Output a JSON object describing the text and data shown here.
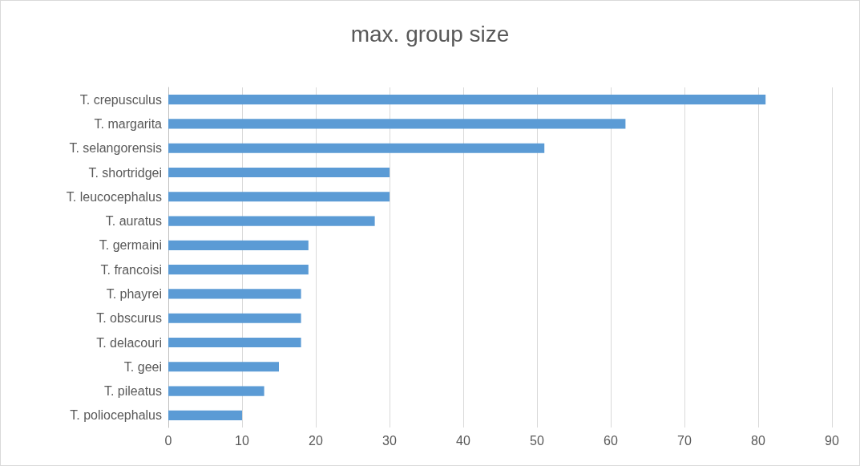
{
  "chart_data": {
    "type": "bar",
    "orientation": "horizontal",
    "title": "max. group size",
    "categories": [
      "T. crepusculus",
      "T. margarita",
      "T. selangorensis",
      "T. shortridgei",
      "T. leucocephalus",
      "T. auratus",
      "T. germaini",
      "T. francoisi",
      "T. phayrei",
      "T. obscurus",
      "T. delacouri",
      "T. geei",
      "T. pileatus",
      "T. poliocephalus"
    ],
    "values": [
      81,
      62,
      51,
      30,
      30,
      28,
      19,
      19,
      18,
      18,
      18,
      15,
      13,
      10
    ],
    "color": "#5b9bd5",
    "xlim": [
      0,
      90
    ],
    "xticks": [
      0,
      10,
      20,
      30,
      40,
      50,
      60,
      70,
      80,
      90
    ],
    "grid": "x"
  }
}
